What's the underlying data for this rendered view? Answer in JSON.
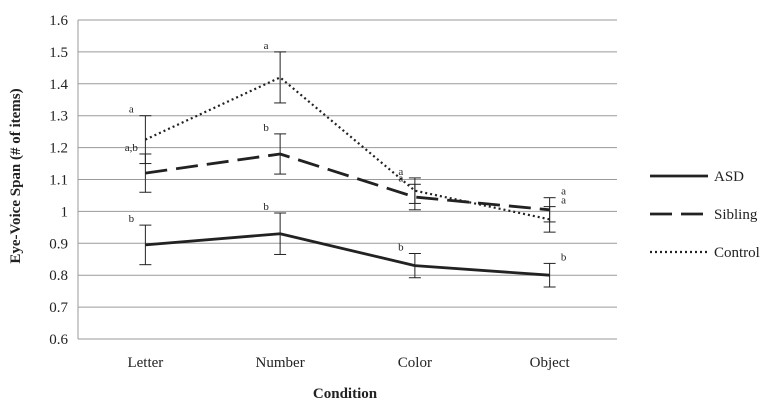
{
  "chart_data": {
    "type": "line",
    "title": "",
    "xlabel": "Condition",
    "ylabel": "Eye-Voice Span (# of items)",
    "categories": [
      "Letter",
      "Number",
      "Color",
      "Object"
    ],
    "ylim": [
      0.6,
      1.6
    ],
    "yticks": [
      "0.6",
      "0.7",
      "0.8",
      "0.9",
      "1",
      "1.1",
      "1.2",
      "1.3",
      "1.4",
      "1.5",
      "1.6"
    ],
    "grid": true,
    "legend_position": "right",
    "series": [
      {
        "name": "ASD",
        "style": "solid",
        "values": [
          0.895,
          0.93,
          0.83,
          0.8
        ],
        "error": [
          0.062,
          0.065,
          0.038,
          0.037
        ],
        "labels": [
          "b",
          "b",
          "b",
          "b"
        ]
      },
      {
        "name": "Sibling",
        "style": "dashed",
        "values": [
          1.12,
          1.18,
          1.045,
          1.005
        ],
        "error": [
          0.06,
          0.063,
          0.04,
          0.038
        ],
        "labels": [
          "a,b",
          "b",
          "a",
          "a"
        ]
      },
      {
        "name": "Control",
        "style": "dotted",
        "values": [
          1.225,
          1.42,
          1.065,
          0.975
        ],
        "error": [
          0.075,
          0.08,
          0.04,
          0.04
        ],
        "labels": [
          "a",
          "a",
          "a",
          "a"
        ]
      }
    ],
    "colors": {
      "line": "#222222",
      "grid": "#9a9a9a"
    }
  }
}
